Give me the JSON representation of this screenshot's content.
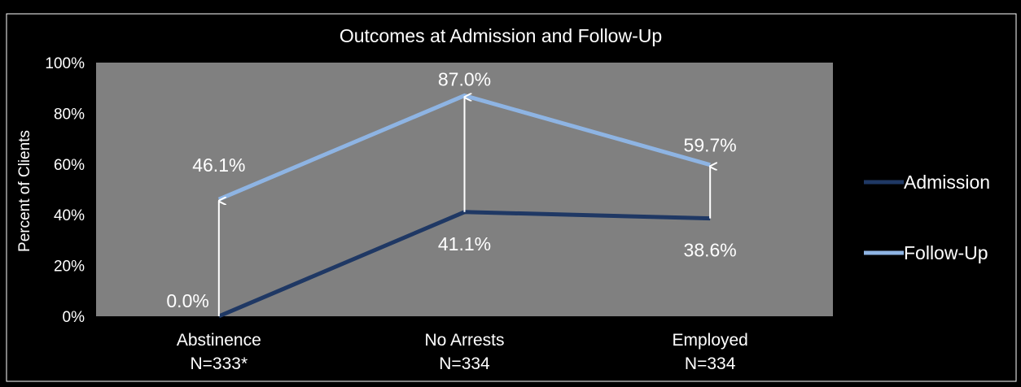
{
  "chart_data": {
    "type": "line",
    "title": "Outcomes at Admission and Follow-Up",
    "ylabel": "Percent of Clients",
    "xlabel": "",
    "ylim": [
      0,
      100
    ],
    "yticks": [
      "0%",
      "20%",
      "40%",
      "60%",
      "80%",
      "100%"
    ],
    "categories": [
      {
        "name": "Abstinence",
        "n": "N=333*"
      },
      {
        "name": "No Arrests",
        "n": "N=334"
      },
      {
        "name": "Employed",
        "n": "N=334"
      }
    ],
    "series": [
      {
        "name": "Admission",
        "values": [
          0.0,
          41.1,
          38.6
        ],
        "labels": [
          "0.0%",
          "41.1%",
          "38.6%"
        ],
        "color": "#1f3864"
      },
      {
        "name": "Follow-Up",
        "values": [
          46.1,
          87.0,
          59.7
        ],
        "labels": [
          "46.1%",
          "87.0%",
          "59.7%"
        ],
        "color": "#8eb4e3"
      }
    ],
    "change_arrows": true,
    "legend": "right",
    "grid": false,
    "plot_background": "#808080",
    "background": "#000000",
    "border_color": "#ffffff"
  }
}
